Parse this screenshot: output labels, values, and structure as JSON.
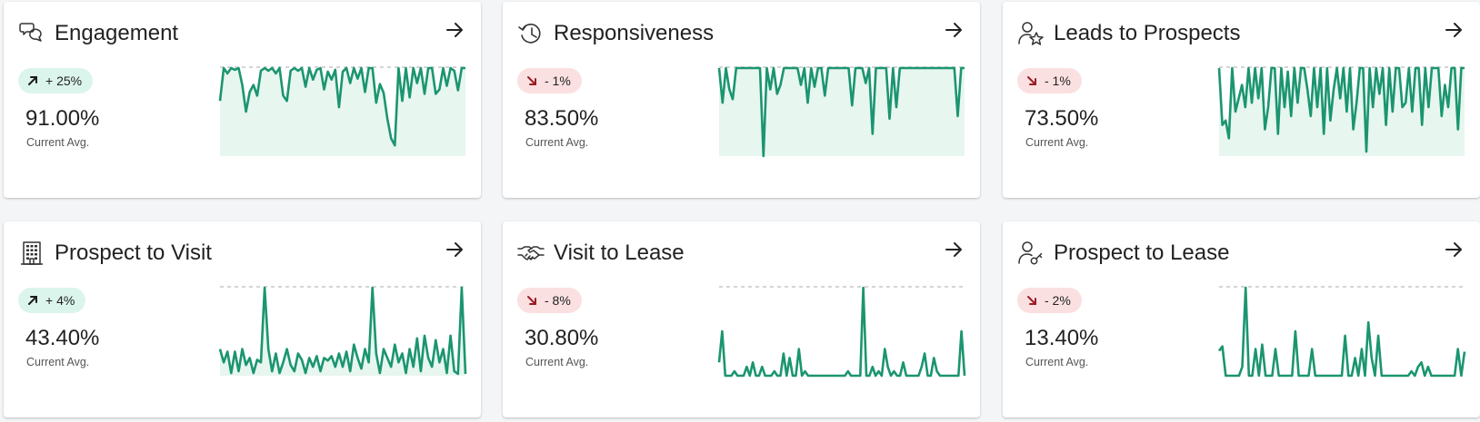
{
  "colors": {
    "line": "#1b9570",
    "fill": "#e7f6ef",
    "reference": "#d5d5d5",
    "up_badge": "#dcf5ec",
    "down_badge": "#fbe0e1",
    "down_arrow": "#9c1c24",
    "up_arrow": "#1c1c1c"
  },
  "cards": [
    {
      "title": "Engagement",
      "icon": "chat-bubbles-icon",
      "trend_direction": "up",
      "trend_label": "+ 25%",
      "value": "91.00%",
      "value_label": "Current Avg.",
      "open_icon": "arrow-right-icon"
    },
    {
      "title": "Responsiveness",
      "icon": "history-clock-icon",
      "trend_direction": "down",
      "trend_label": "- 1%",
      "value": "83.50%",
      "value_label": "Current Avg.",
      "open_icon": "arrow-right-icon"
    },
    {
      "title": "Leads to Prospects",
      "icon": "person-star-icon",
      "trend_direction": "down",
      "trend_label": "- 1%",
      "value": "73.50%",
      "value_label": "Current Avg.",
      "open_icon": "arrow-right-icon"
    },
    {
      "title": "Prospect to Visit",
      "icon": "building-icon",
      "trend_direction": "up",
      "trend_label": "+ 4%",
      "value": "43.40%",
      "value_label": "Current Avg.",
      "open_icon": "arrow-right-icon"
    },
    {
      "title": "Visit to Lease",
      "icon": "handshake-icon",
      "trend_direction": "down",
      "trend_label": "- 8%",
      "value": "30.80%",
      "value_label": "Current Avg.",
      "open_icon": "arrow-right-icon"
    },
    {
      "title": "Prospect to Lease",
      "icon": "person-key-icon",
      "trend_direction": "down",
      "trend_label": "- 2%",
      "value": "13.40%",
      "value_label": "Current Avg.",
      "open_icon": "arrow-right-icon"
    }
  ],
  "chart_data": [
    {
      "type": "area",
      "ylim": [
        0,
        1
      ],
      "reference": 1,
      "fill": true,
      "values": [
        0.62,
        0.99,
        0.93,
        0.99,
        0.97,
        0.99,
        0.8,
        0.5,
        0.72,
        0.8,
        0.68,
        0.96,
        0.99,
        0.96,
        0.99,
        0.93,
        0.99,
        0.68,
        0.62,
        0.96,
        0.99,
        0.96,
        0.99,
        0.78,
        0.99,
        0.86,
        0.97,
        0.99,
        0.75,
        0.95,
        0.86,
        0.97,
        0.55,
        0.95,
        0.99,
        0.82,
        0.99,
        0.87,
        0.99,
        0.72,
        0.99,
        0.99,
        0.6,
        0.81,
        0.71,
        0.42,
        0.2,
        0.12,
        0.99,
        0.62,
        0.99,
        0.66,
        0.99,
        0.82,
        0.99,
        0.7,
        0.99,
        0.99,
        0.7,
        0.75,
        0.99,
        0.79,
        0.99,
        0.96,
        0.74,
        0.99,
        0.99
      ]
    },
    {
      "type": "area",
      "ylim": [
        0,
        1
      ],
      "reference": 1,
      "fill": true,
      "values": [
        0.99,
        0.6,
        0.99,
        0.75,
        0.64,
        0.99,
        0.99,
        0.99,
        0.99,
        0.99,
        0.99,
        0.99,
        0.99,
        0.0,
        0.99,
        0.75,
        0.99,
        0.7,
        0.8,
        0.99,
        0.99,
        0.99,
        0.99,
        0.99,
        0.8,
        0.99,
        0.6,
        0.99,
        0.78,
        0.99,
        0.99,
        0.68,
        0.99,
        0.99,
        0.99,
        0.99,
        0.99,
        0.99,
        0.99,
        0.57,
        0.99,
        0.99,
        0.99,
        0.82,
        0.99,
        0.25,
        0.99,
        0.99,
        0.99,
        0.99,
        0.42,
        0.99,
        0.55,
        0.99,
        0.99,
        0.99,
        0.99,
        0.99,
        0.99,
        0.99,
        0.99,
        0.99,
        0.99,
        0.99,
        0.99,
        0.99,
        0.99,
        0.99,
        0.99,
        0.99,
        0.45,
        0.99,
        0.99
      ]
    },
    {
      "type": "area",
      "ylim": [
        0,
        1
      ],
      "reference": 1,
      "fill": true,
      "values": [
        0.99,
        0.35,
        0.4,
        0.2,
        0.99,
        0.5,
        0.65,
        0.8,
        0.55,
        0.99,
        0.6,
        0.99,
        0.65,
        0.99,
        0.3,
        0.55,
        0.99,
        0.99,
        0.25,
        0.99,
        0.55,
        0.95,
        0.45,
        0.99,
        0.6,
        0.99,
        0.99,
        0.75,
        0.45,
        0.99,
        0.55,
        0.99,
        0.25,
        0.99,
        0.4,
        0.75,
        0.99,
        0.65,
        0.99,
        0.5,
        0.99,
        0.3,
        0.6,
        0.99,
        0.99,
        0.05,
        0.99,
        0.55,
        0.99,
        0.7,
        0.99,
        0.35,
        0.99,
        0.5,
        0.99,
        0.99,
        0.55,
        0.6,
        0.99,
        0.5,
        0.99,
        0.99,
        0.35,
        0.99,
        0.55,
        0.99,
        0.99,
        0.99,
        0.45,
        0.8,
        0.55,
        0.99,
        0.99,
        0.3,
        0.99,
        0.99
      ]
    },
    {
      "type": "area",
      "ylim": [
        0,
        1
      ],
      "reference": 1,
      "fill": true,
      "values": [
        0.3,
        0.15,
        0.27,
        0.03,
        0.27,
        0.05,
        0.3,
        0.12,
        0.2,
        0.03,
        0.18,
        0.15,
        0.99,
        0.3,
        0.05,
        0.25,
        0.03,
        0.15,
        0.3,
        0.12,
        0.05,
        0.25,
        0.18,
        0.03,
        0.2,
        0.1,
        0.22,
        0.05,
        0.2,
        0.17,
        0.22,
        0.1,
        0.25,
        0.1,
        0.27,
        0.05,
        0.35,
        0.2,
        0.08,
        0.3,
        0.15,
        0.99,
        0.25,
        0.03,
        0.3,
        0.2,
        0.1,
        0.35,
        0.15,
        0.25,
        0.03,
        0.3,
        0.1,
        0.42,
        0.05,
        0.45,
        0.2,
        0.1,
        0.4,
        0.15,
        0.3,
        0.03,
        0.45,
        0.05,
        0.02,
        0.99,
        0.02
      ]
    },
    {
      "type": "line",
      "ylim": [
        0,
        1
      ],
      "reference": 1,
      "fill": false,
      "values": [
        0.15,
        0.5,
        0.0,
        0.0,
        0.0,
        0.05,
        0.0,
        0.0,
        0.0,
        0.1,
        0.0,
        0.15,
        0.0,
        0.0,
        0.1,
        0.0,
        0.0,
        0.0,
        0.05,
        0.0,
        0.0,
        0.25,
        0.0,
        0.2,
        0.0,
        0.0,
        0.3,
        0.0,
        0.05,
        0.0,
        0.0,
        0.0,
        0.0,
        0.0,
        0.0,
        0.0,
        0.0,
        0.0,
        0.0,
        0.0,
        0.0,
        0.0,
        0.05,
        0.0,
        0.0,
        0.0,
        0.0,
        0.99,
        0.0,
        0.0,
        0.1,
        0.0,
        0.05,
        0.0,
        0.3,
        0.1,
        0.0,
        0.05,
        0.0,
        0.0,
        0.15,
        0.0,
        0.0,
        0.0,
        0.0,
        0.0,
        0.1,
        0.25,
        0.0,
        0.0,
        0.2,
        0.05,
        0.0,
        0.0,
        0.0,
        0.0,
        0.0,
        0.0,
        0.0,
        0.5,
        0.0
      ]
    },
    {
      "type": "line",
      "ylim": [
        0,
        1
      ],
      "reference": 1,
      "fill": false,
      "values": [
        0.28,
        0.33,
        0.0,
        0.0,
        0.0,
        0.0,
        0.0,
        0.1,
        0.99,
        0.0,
        0.0,
        0.3,
        0.0,
        0.35,
        0.0,
        0.0,
        0.0,
        0.3,
        0.0,
        0.0,
        0.0,
        0.0,
        0.0,
        0.5,
        0.0,
        0.0,
        0.0,
        0.0,
        0.3,
        0.0,
        0.0,
        0.0,
        0.0,
        0.0,
        0.0,
        0.0,
        0.0,
        0.0,
        0.45,
        0.0,
        0.0,
        0.2,
        0.0,
        0.3,
        0.0,
        0.6,
        0.2,
        0.0,
        0.45,
        0.0,
        0.0,
        0.0,
        0.0,
        0.0,
        0.0,
        0.0,
        0.0,
        0.0,
        0.05,
        0.0,
        0.1,
        0.15,
        0.0,
        0.1,
        0.0,
        0.0,
        0.0,
        0.0,
        0.0,
        0.0,
        0.0,
        0.0,
        0.3,
        0.0,
        0.27
      ]
    }
  ]
}
